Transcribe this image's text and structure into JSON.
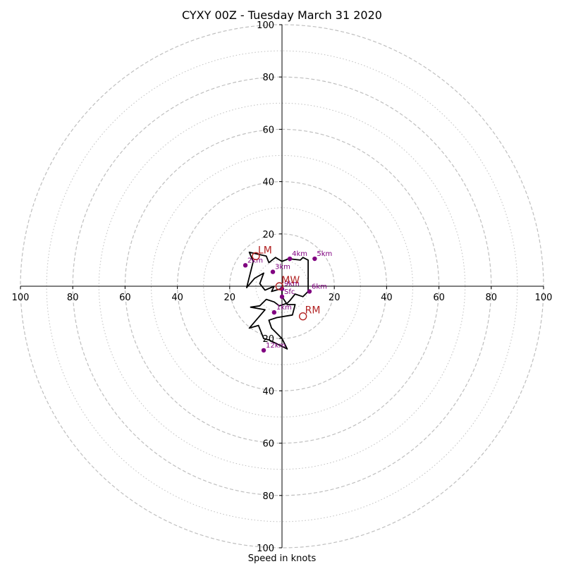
{
  "chart_data": {
    "type": "scatter",
    "title": "CYXY 00Z - Tuesday March 31 2020",
    "xlabel": "Speed in knots",
    "ylabel": "",
    "xlim": [
      -100,
      100
    ],
    "ylim": [
      -100,
      100
    ],
    "ring_major": [
      20,
      40,
      60,
      80,
      100
    ],
    "ring_minor": [
      10,
      30,
      50,
      70,
      90
    ],
    "x_tick_labels": [
      "100",
      "80",
      "60",
      "40",
      "20",
      "20",
      "40",
      "60",
      "80",
      "100"
    ],
    "x_tick_values": [
      -100,
      -80,
      -60,
      -40,
      -20,
      20,
      40,
      60,
      80,
      100
    ],
    "y_tick_labels": [
      "100",
      "80",
      "60",
      "40",
      "20",
      "20",
      "40",
      "60",
      "80",
      "100"
    ],
    "y_tick_values": [
      100,
      80,
      60,
      40,
      20,
      -20,
      -40,
      -60,
      -80,
      -100
    ],
    "hodograph_line": {
      "color": "#000000",
      "points": [
        [
          -0.5,
          -1
        ],
        [
          -4,
          -2
        ],
        [
          -3,
          0
        ],
        [
          -6.5,
          -1.5
        ],
        [
          -8.5,
          1
        ],
        [
          -7,
          5
        ],
        [
          -10.5,
          3
        ],
        [
          -13.5,
          -0.5
        ],
        [
          -11,
          9.5
        ],
        [
          -12.5,
          13
        ],
        [
          -6,
          11.5
        ],
        [
          -5,
          9
        ],
        [
          -2.5,
          11
        ],
        [
          0,
          9.5
        ],
        [
          2.5,
          10.5
        ],
        [
          7,
          10
        ],
        [
          8,
          11
        ],
        [
          10,
          10
        ],
        [
          10,
          7
        ],
        [
          10,
          0
        ],
        [
          10,
          -2
        ],
        [
          8,
          -4
        ],
        [
          5,
          -3
        ],
        [
          3,
          -5.5
        ],
        [
          2,
          -6.5
        ],
        [
          -1,
          -7.5
        ],
        [
          -3,
          -6
        ],
        [
          -6,
          -5
        ],
        [
          -8.5,
          -7.5
        ],
        [
          -12,
          -8
        ],
        [
          -6.5,
          -9
        ],
        [
          -12.5,
          -16
        ],
        [
          -9,
          -15
        ],
        [
          -7,
          -20
        ],
        [
          -5,
          -20.5
        ],
        [
          -3,
          -21.5
        ],
        [
          2,
          -24
        ],
        [
          0,
          -20
        ],
        [
          -4,
          -16
        ],
        [
          -5,
          -13
        ],
        [
          -2,
          -12
        ],
        [
          4,
          -11
        ],
        [
          5,
          -7
        ],
        [
          2,
          -7
        ],
        [
          0,
          -4
        ],
        [
          0,
          -1
        ]
      ]
    },
    "height_points": [
      {
        "label": "Sfc",
        "x": 0,
        "y": -4
      },
      {
        "label": "1km",
        "x": -3,
        "y": -10
      },
      {
        "label": "2km",
        "x": -14,
        "y": 8
      },
      {
        "label": "3km",
        "x": -3.5,
        "y": 5.5
      },
      {
        "label": "4km",
        "x": 3,
        "y": 10.5
      },
      {
        "label": "5km",
        "x": 12.5,
        "y": 10.5
      },
      {
        "label": "6km",
        "x": 10.5,
        "y": -2
      },
      {
        "label": "9km",
        "x": 0,
        "y": -1
      },
      {
        "label": "12km",
        "x": -7,
        "y": -24.5
      }
    ],
    "motion_points": [
      {
        "label": "LM",
        "x": -10,
        "y": 11.5
      },
      {
        "label": "MW",
        "x": -1,
        "y": 0
      },
      {
        "label": "RM",
        "x": 8,
        "y": -11.5
      }
    ],
    "colors": {
      "points": "#800080",
      "motion": "#b22222",
      "rings": "#bfbfbf",
      "axes": "#000000",
      "line": "#000000"
    }
  }
}
